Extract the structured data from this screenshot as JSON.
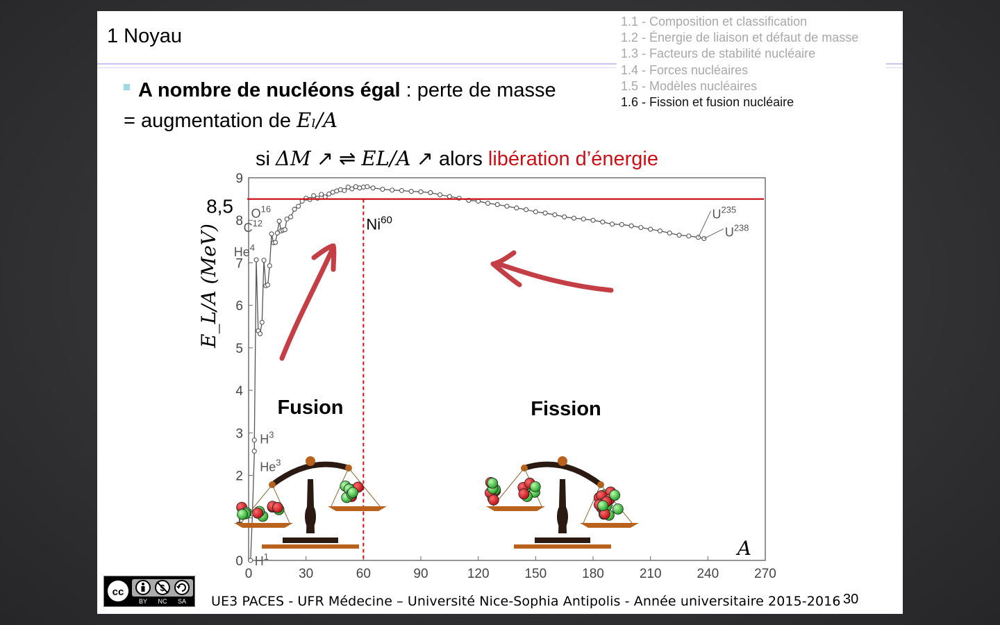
{
  "slide": {
    "title": "1 Noyau",
    "toc": [
      "1.1 - Composition et classification",
      "1.2 - Énergie de liaison et défaut de masse",
      "1.3 - Facteurs de stabilité nucléaire",
      "1.4 - Forces nucléaires",
      "1.5 - Modèles nucléaires",
      "1.6 - Fission et fusion nucléaire"
    ],
    "active_toc_index": 5,
    "bullet_bold": "A nombre de nucléons égal",
    "bullet_rest": " : perte de masse",
    "equals_prefix": "=  augmentation de ",
    "equals_math": "Eₗ/A",
    "si_prefix": "si  ",
    "si_delta": "ΔM",
    "si_arrow1": " ↗   ⇌  ",
    "si_elA": "EL/A",
    "si_arrow2": "  ↗   alors ",
    "si_red": "libération d’énergie",
    "footer": "UE3 PACES - UFR Médecine – Université Nice-Sophia Antipolis - Année universitaire 2015-2016",
    "page_number": "30",
    "license_labels": [
      "cc",
      "BY",
      "NC",
      "SA"
    ]
  },
  "colors": {
    "accent_red": "#cc0f17",
    "arrow_red": "#b81c24",
    "rule_lavender": "#c6c6ef",
    "bullet": "#9fd9e6",
    "nucleon_red": "#d4141a",
    "nucleon_green": "#3cc83c",
    "scale_dark": "#2b1a12",
    "scale_brown": "#b8621e"
  },
  "chart_data": {
    "type": "line",
    "xlabel": "A",
    "ylabel": "E_L/A (MeV)",
    "xlim": [
      0,
      270
    ],
    "ylim": [
      0,
      9
    ],
    "x_ticks": [
      "0",
      "30",
      "60",
      "90",
      "120",
      "150",
      "180",
      "210",
      "240",
      "270"
    ],
    "y_ticks": [
      "0",
      "1",
      "2",
      "3",
      "4",
      "5",
      "6",
      "7",
      "8",
      "9"
    ],
    "reference_line": {
      "y": 8.5,
      "label": "8,5"
    },
    "vertical_marker": {
      "x": 60,
      "label": "Ni",
      "superscript": "60"
    },
    "series": [
      {
        "x": [
          1,
          2,
          3,
          3,
          4,
          5,
          6,
          7,
          8,
          9,
          10,
          11,
          12,
          13,
          14,
          15,
          16,
          17,
          18,
          19,
          20,
          22,
          24,
          26,
          28,
          30,
          32,
          34,
          36,
          38,
          40,
          42,
          44,
          46,
          48,
          50,
          52,
          54,
          56,
          58,
          60,
          62,
          65,
          70,
          75,
          80,
          85,
          90,
          95,
          100,
          105,
          110,
          115,
          120,
          125,
          130,
          135,
          140,
          145,
          150,
          155,
          160,
          165,
          170,
          175,
          180,
          185,
          190,
          195,
          200,
          205,
          210,
          215,
          220,
          225,
          230,
          235,
          238
        ],
        "y": [
          0.0,
          1.1,
          2.57,
          2.83,
          7.07,
          5.4,
          5.33,
          5.6,
          7.06,
          6.46,
          6.48,
          6.93,
          7.68,
          7.47,
          7.48,
          7.7,
          7.98,
          7.75,
          7.77,
          7.78,
          8.03,
          8.08,
          8.26,
          8.33,
          8.45,
          8.52,
          8.49,
          8.58,
          8.52,
          8.61,
          8.55,
          8.62,
          8.66,
          8.69,
          8.72,
          8.7,
          8.78,
          8.74,
          8.79,
          8.76,
          8.78,
          8.79,
          8.76,
          8.73,
          8.71,
          8.7,
          8.68,
          8.67,
          8.65,
          8.6,
          8.56,
          8.52,
          8.47,
          8.45,
          8.4,
          8.37,
          8.33,
          8.29,
          8.25,
          8.2,
          8.17,
          8.13,
          8.08,
          8.05,
          8.03,
          8.0,
          7.96,
          7.91,
          7.9,
          7.87,
          7.83,
          7.79,
          7.75,
          7.7,
          7.65,
          7.63,
          7.6,
          7.57
        ]
      }
    ],
    "point_labels": [
      {
        "text": "H",
        "sup": "1",
        "x": 1,
        "y": 0.0
      },
      {
        "text": "H",
        "sup": "3",
        "x": 3,
        "y": 2.83
      },
      {
        "text": "He",
        "sup": "3",
        "x": 3,
        "y": 2.57
      },
      {
        "text": "He",
        "sup": "4",
        "x": 4,
        "y": 7.07
      },
      {
        "text": "C",
        "sup": "12",
        "x": 12,
        "y": 7.68
      },
      {
        "text": "O",
        "sup": "16",
        "x": 16,
        "y": 7.98
      },
      {
        "text": "U",
        "sup": "235",
        "x": 235,
        "y": 7.6
      },
      {
        "text": "U",
        "sup": "238",
        "x": 238,
        "y": 7.57
      }
    ],
    "region_labels": [
      "Fusion",
      "Fission"
    ]
  }
}
